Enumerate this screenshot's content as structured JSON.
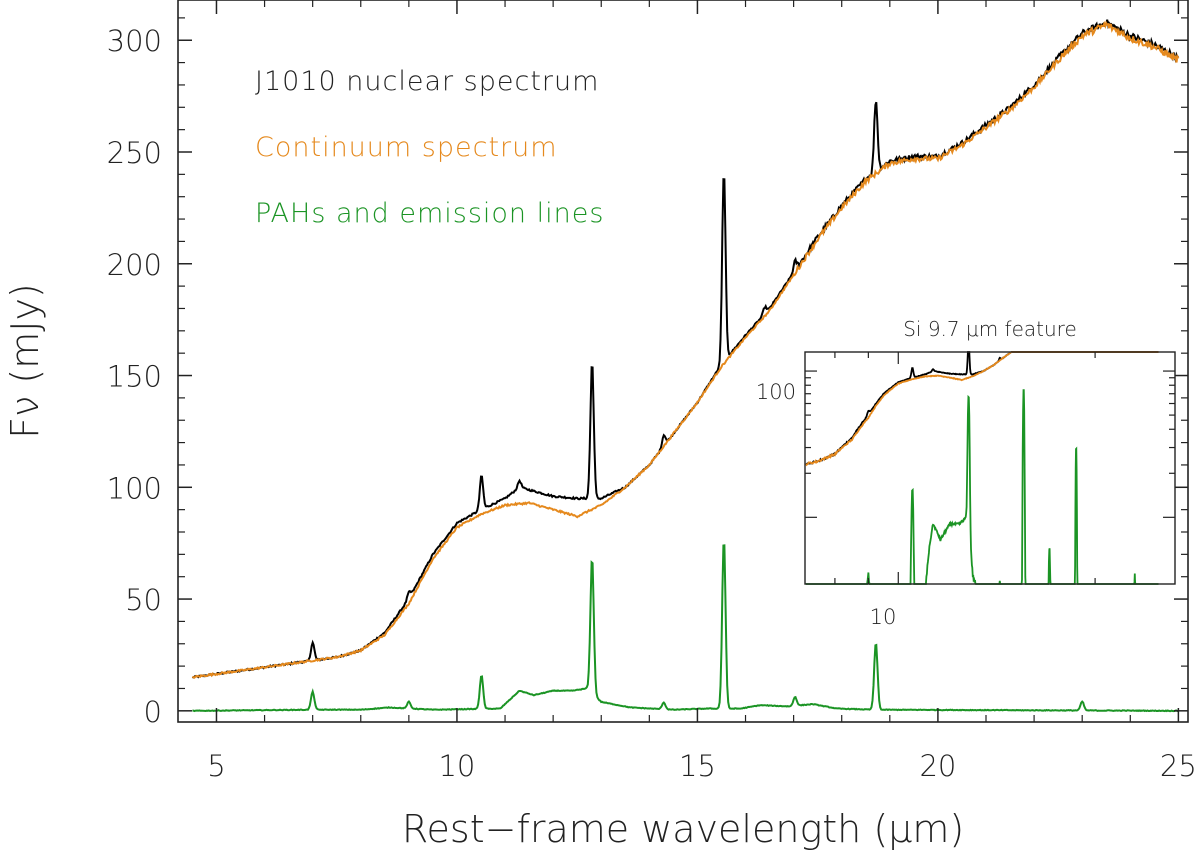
{
  "chart_data": {
    "type": "line",
    "xlabel": "Rest−frame wavelength (μm)",
    "ylabel": "Fν (mJy)",
    "xlim": [
      4.2,
      25.2
    ],
    "ylim": [
      -5,
      318
    ],
    "x_ticks": [
      5,
      10,
      15,
      20,
      25
    ],
    "x_tick_labels": [
      "5",
      "10",
      "15",
      "20",
      "25"
    ],
    "y_ticks": [
      0,
      50,
      100,
      150,
      200,
      250,
      300
    ],
    "y_tick_labels": [
      "0",
      "50",
      "100",
      "150",
      "200",
      "250",
      "300"
    ],
    "grid": false,
    "legend_position": "top-left",
    "series": [
      {
        "name": "J1010 nuclear spectrum",
        "color": "#000000",
        "base": [
          [
            4.5,
            15
          ],
          [
            5.5,
            18
          ],
          [
            6.5,
            21
          ],
          [
            7.5,
            24
          ],
          [
            8.0,
            27
          ],
          [
            8.5,
            35
          ],
          [
            9.0,
            50
          ],
          [
            9.5,
            70
          ],
          [
            10.0,
            84
          ],
          [
            10.5,
            90
          ],
          [
            11.0,
            95
          ],
          [
            11.3,
            100
          ],
          [
            12.0,
            96
          ],
          [
            12.5,
            95
          ],
          [
            13.0,
            95
          ],
          [
            13.5,
            100
          ],
          [
            14.0,
            110
          ],
          [
            14.5,
            124
          ],
          [
            15.0,
            138
          ],
          [
            15.5,
            155
          ],
          [
            16.0,
            168
          ],
          [
            16.5,
            180
          ],
          [
            17.0,
            196
          ],
          [
            17.5,
            212
          ],
          [
            18.0,
            226
          ],
          [
            18.5,
            238
          ],
          [
            19.0,
            246
          ],
          [
            19.5,
            248
          ],
          [
            20.0,
            248
          ],
          [
            20.5,
            254
          ],
          [
            21.0,
            262
          ],
          [
            21.5,
            270
          ],
          [
            22.0,
            280
          ],
          [
            22.5,
            292
          ],
          [
            23.0,
            303
          ],
          [
            23.5,
            308
          ],
          [
            24.0,
            302
          ],
          [
            24.5,
            298
          ],
          [
            25.0,
            292
          ]
        ],
        "lines": [
          [
            7.0,
            8
          ],
          [
            9.0,
            3
          ],
          [
            10.51,
            15
          ],
          [
            11.3,
            3
          ],
          [
            12.81,
            61
          ],
          [
            14.3,
            5
          ],
          [
            15.55,
            85
          ],
          [
            16.4,
            3
          ],
          [
            17.03,
            4
          ],
          [
            18.71,
            32
          ]
        ]
      },
      {
        "name": "Continuum spectrum",
        "color": "#e5891d",
        "base": [
          [
            4.5,
            15
          ],
          [
            5.5,
            18
          ],
          [
            6.5,
            21
          ],
          [
            7.5,
            24
          ],
          [
            8.0,
            27
          ],
          [
            8.5,
            34
          ],
          [
            9.0,
            48
          ],
          [
            9.5,
            68
          ],
          [
            10.0,
            82
          ],
          [
            10.5,
            88
          ],
          [
            11.0,
            92
          ],
          [
            11.5,
            93
          ],
          [
            12.0,
            90
          ],
          [
            12.5,
            87
          ],
          [
            13.0,
            92
          ],
          [
            13.5,
            100
          ],
          [
            14.0,
            110
          ],
          [
            14.5,
            124
          ],
          [
            15.0,
            138
          ],
          [
            15.5,
            154
          ],
          [
            16.0,
            167
          ],
          [
            16.5,
            179
          ],
          [
            17.0,
            195
          ],
          [
            17.5,
            211
          ],
          [
            18.0,
            225
          ],
          [
            18.5,
            237
          ],
          [
            19.0,
            245
          ],
          [
            19.5,
            247
          ],
          [
            20.0,
            247
          ],
          [
            20.5,
            253
          ],
          [
            21.0,
            261
          ],
          [
            21.5,
            269
          ],
          [
            22.0,
            279
          ],
          [
            22.5,
            291
          ],
          [
            23.0,
            302
          ],
          [
            23.5,
            307
          ],
          [
            24.0,
            301
          ],
          [
            24.5,
            297
          ],
          [
            25.0,
            291
          ]
        ],
        "lines": []
      },
      {
        "name": "PAHs and emission lines",
        "color": "#1b9424",
        "base": [
          [
            4.5,
            0
          ],
          [
            7.0,
            0.5
          ],
          [
            8.0,
            0.5
          ],
          [
            8.6,
            1.5
          ],
          [
            9.5,
            0.5
          ],
          [
            10.9,
            1
          ],
          [
            11.3,
            9
          ],
          [
            11.6,
            7
          ],
          [
            12.0,
            9
          ],
          [
            12.4,
            9
          ],
          [
            12.7,
            10
          ],
          [
            13.0,
            4
          ],
          [
            13.6,
            1.5
          ],
          [
            14.5,
            0.5
          ],
          [
            15.2,
            1
          ],
          [
            15.9,
            1
          ],
          [
            16.3,
            2.5
          ],
          [
            16.9,
            2
          ],
          [
            17.4,
            3
          ],
          [
            17.9,
            1
          ],
          [
            18.7,
            0.5
          ],
          [
            25.0,
            0
          ]
        ],
        "lines": [
          [
            7.0,
            8
          ],
          [
            9.0,
            3
          ],
          [
            10.51,
            15
          ],
          [
            12.81,
            61
          ],
          [
            14.3,
            3
          ],
          [
            15.55,
            76
          ],
          [
            17.03,
            4
          ],
          [
            18.71,
            30
          ],
          [
            23.0,
            4
          ]
        ]
      }
    ],
    "inset": {
      "title": "Si 9.7 μm feature",
      "x_scale": "log",
      "y_scale": "log",
      "xlim": [
        7.2,
        26.5
      ],
      "ylim": [
        3.5,
        135
      ],
      "x_tick_labels": [
        "10"
      ],
      "y_tick_labels": [
        "100"
      ]
    }
  }
}
